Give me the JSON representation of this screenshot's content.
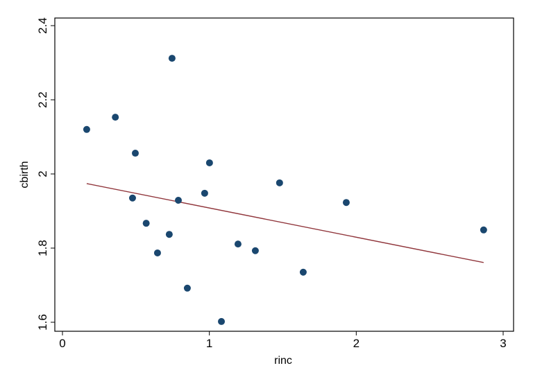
{
  "chart_data": {
    "type": "scatter",
    "title": "",
    "xlabel": "rinc",
    "ylabel": "cbirth",
    "xlim": [
      0,
      3
    ],
    "ylim": [
      1.6,
      2.4
    ],
    "xticks": [
      "0",
      "1",
      "2",
      "3"
    ],
    "yticks": [
      "1.6",
      "1.8",
      "2",
      "2.2",
      "2.4"
    ],
    "grid": false,
    "legend": "none",
    "colors": {
      "points": "#1a476f",
      "fit_line": "#90353b"
    },
    "points": [
      {
        "x": 0.165,
        "y": 2.12
      },
      {
        "x": 0.36,
        "y": 2.153
      },
      {
        "x": 0.746,
        "y": 2.312
      },
      {
        "x": 0.496,
        "y": 2.056
      },
      {
        "x": 0.477,
        "y": 1.935
      },
      {
        "x": 0.57,
        "y": 1.867
      },
      {
        "x": 0.647,
        "y": 1.787
      },
      {
        "x": 0.727,
        "y": 1.837
      },
      {
        "x": 0.789,
        "y": 1.929
      },
      {
        "x": 0.85,
        "y": 1.692
      },
      {
        "x": 0.968,
        "y": 1.948
      },
      {
        "x": 1.001,
        "y": 2.03
      },
      {
        "x": 1.082,
        "y": 1.602
      },
      {
        "x": 1.195,
        "y": 1.811
      },
      {
        "x": 1.313,
        "y": 1.793
      },
      {
        "x": 1.478,
        "y": 1.976
      },
      {
        "x": 1.639,
        "y": 1.735
      },
      {
        "x": 1.932,
        "y": 1.923
      },
      {
        "x": 2.867,
        "y": 1.849
      }
    ],
    "fit_line": {
      "x": [
        0.165,
        2.867
      ],
      "y": [
        1.974,
        1.761
      ]
    }
  }
}
